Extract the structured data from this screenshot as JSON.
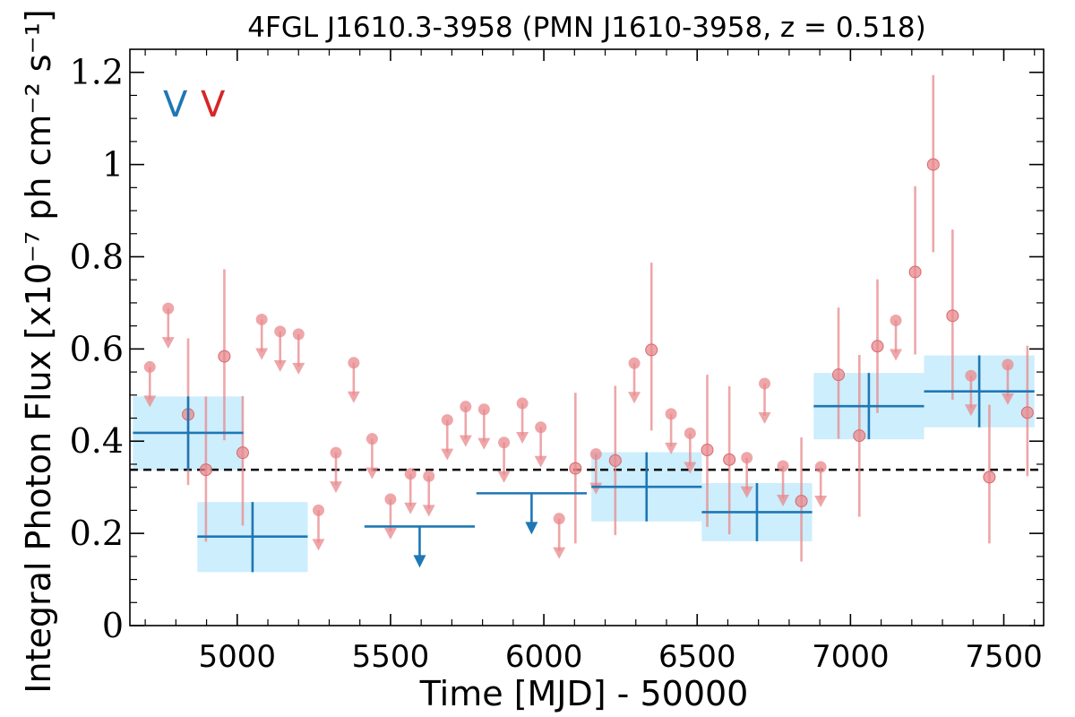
{
  "chart_data": {
    "type": "scatter",
    "title": "4FGL J1610.3-3958 (PMN J1610-3958, z = 0.518)",
    "xlabel": "Time [MJD] - 50000",
    "ylabel": "Integral Photon Flux [x10⁻⁷ ph cm⁻² s⁻¹]",
    "xlim": [
      4650,
      7630
    ],
    "ylim": [
      0,
      1.25
    ],
    "xticks": [
      "5000",
      "5500",
      "6000",
      "6500",
      "7000",
      "7500"
    ],
    "yticks": [
      "0",
      "0.2",
      "0.4",
      "0.6",
      "0.8",
      "1",
      "1.2"
    ],
    "mean_flux": 0.338,
    "marker_labels": [
      "V",
      "V"
    ],
    "colors": {
      "long_bins": "#1f77b4",
      "long_band": "#cdeefc",
      "short_bins": "#e8888c",
      "marker_blue": "#1f77b4",
      "marker_red": "#d62728",
      "mean_line": "#000000"
    },
    "series": [
      {
        "points": [
          {
            "x": 5050,
            "y": 0.193,
            "xerr": 180,
            "ylo": 0.116,
            "yhi": 0.268
          },
          {
            "x": 6335,
            "y": 0.301,
            "xerr": 180,
            "ylo": 0.226,
            "yhi": 0.376
          },
          {
            "x": 6695,
            "y": 0.246,
            "xerr": 180,
            "ylo": 0.183,
            "yhi": 0.309
          },
          {
            "x": 7060,
            "y": 0.476,
            "xerr": 180,
            "ylo": 0.404,
            "yhi": 0.548
          },
          {
            "x": 7420,
            "y": 0.508,
            "xerr": 180,
            "ylo": 0.43,
            "yhi": 0.586
          }
        ],
        "first_bin": {
          "x": 4840,
          "y": 0.418,
          "xerr": 180,
          "ylo": 0.337,
          "yhi": 0.497
        },
        "upper_limits": [
          {
            "x": 5595,
            "y": 0.215,
            "xerr": 180
          },
          {
            "x": 5960,
            "y": 0.287,
            "xerr": 180
          }
        ]
      },
      {
        "points": [
          {
            "x": 4840,
            "y": 0.458,
            "ylo": 0.305,
            "yhi": 0.623
          },
          {
            "x": 4898,
            "y": 0.338,
            "ylo": 0.182,
            "yhi": 0.497
          },
          {
            "x": 4958,
            "y": 0.584,
            "ylo": 0.402,
            "yhi": 0.773
          },
          {
            "x": 5018,
            "y": 0.375,
            "ylo": 0.217,
            "yhi": 0.498
          },
          {
            "x": 6103,
            "y": 0.341,
            "ylo": 0.178,
            "yhi": 0.505
          },
          {
            "x": 6233,
            "y": 0.358,
            "ylo": 0.196,
            "yhi": 0.52
          },
          {
            "x": 6351,
            "y": 0.598,
            "ylo": 0.423,
            "yhi": 0.787
          },
          {
            "x": 6533,
            "y": 0.381,
            "ylo": 0.214,
            "yhi": 0.544
          },
          {
            "x": 6605,
            "y": 0.36,
            "ylo": 0.198,
            "yhi": 0.519
          },
          {
            "x": 6840,
            "y": 0.27,
            "ylo": 0.139,
            "yhi": 0.408
          },
          {
            "x": 6961,
            "y": 0.544,
            "ylo": 0.405,
            "yhi": 0.69
          },
          {
            "x": 7029,
            "y": 0.412,
            "ylo": 0.236,
            "yhi": 0.587
          },
          {
            "x": 7088,
            "y": 0.606,
            "ylo": 0.461,
            "yhi": 0.751
          },
          {
            "x": 7211,
            "y": 0.767,
            "ylo": 0.588,
            "yhi": 0.953
          },
          {
            "x": 7270,
            "y": 1.0,
            "ylo": 0.81,
            "yhi": 1.194
          },
          {
            "x": 7333,
            "y": 0.672,
            "ylo": 0.49,
            "yhi": 0.859
          },
          {
            "x": 7453,
            "y": 0.322,
            "ylo": 0.178,
            "yhi": 0.479
          },
          {
            "x": 7577,
            "y": 0.462,
            "ylo": 0.324,
            "yhi": 0.607
          }
        ],
        "upper_limits": [
          {
            "x": 4715,
            "y": 0.561
          },
          {
            "x": 4775,
            "y": 0.688
          },
          {
            "x": 5080,
            "y": 0.664
          },
          {
            "x": 5140,
            "y": 0.638
          },
          {
            "x": 5200,
            "y": 0.632
          },
          {
            "x": 5265,
            "y": 0.25
          },
          {
            "x": 5322,
            "y": 0.375
          },
          {
            "x": 5380,
            "y": 0.57
          },
          {
            "x": 5440,
            "y": 0.405
          },
          {
            "x": 5500,
            "y": 0.274
          },
          {
            "x": 5565,
            "y": 0.329
          },
          {
            "x": 5625,
            "y": 0.324
          },
          {
            "x": 5685,
            "y": 0.446
          },
          {
            "x": 5745,
            "y": 0.475
          },
          {
            "x": 5805,
            "y": 0.469
          },
          {
            "x": 5870,
            "y": 0.397
          },
          {
            "x": 5930,
            "y": 0.482
          },
          {
            "x": 5990,
            "y": 0.43
          },
          {
            "x": 6050,
            "y": 0.232
          },
          {
            "x": 6170,
            "y": 0.372
          },
          {
            "x": 6295,
            "y": 0.569
          },
          {
            "x": 6415,
            "y": 0.459
          },
          {
            "x": 6477,
            "y": 0.417
          },
          {
            "x": 6662,
            "y": 0.364
          },
          {
            "x": 6720,
            "y": 0.525
          },
          {
            "x": 6780,
            "y": 0.346
          },
          {
            "x": 6903,
            "y": 0.344
          },
          {
            "x": 7148,
            "y": 0.662
          },
          {
            "x": 7393,
            "y": 0.542
          },
          {
            "x": 7513,
            "y": 0.566
          }
        ]
      }
    ]
  }
}
